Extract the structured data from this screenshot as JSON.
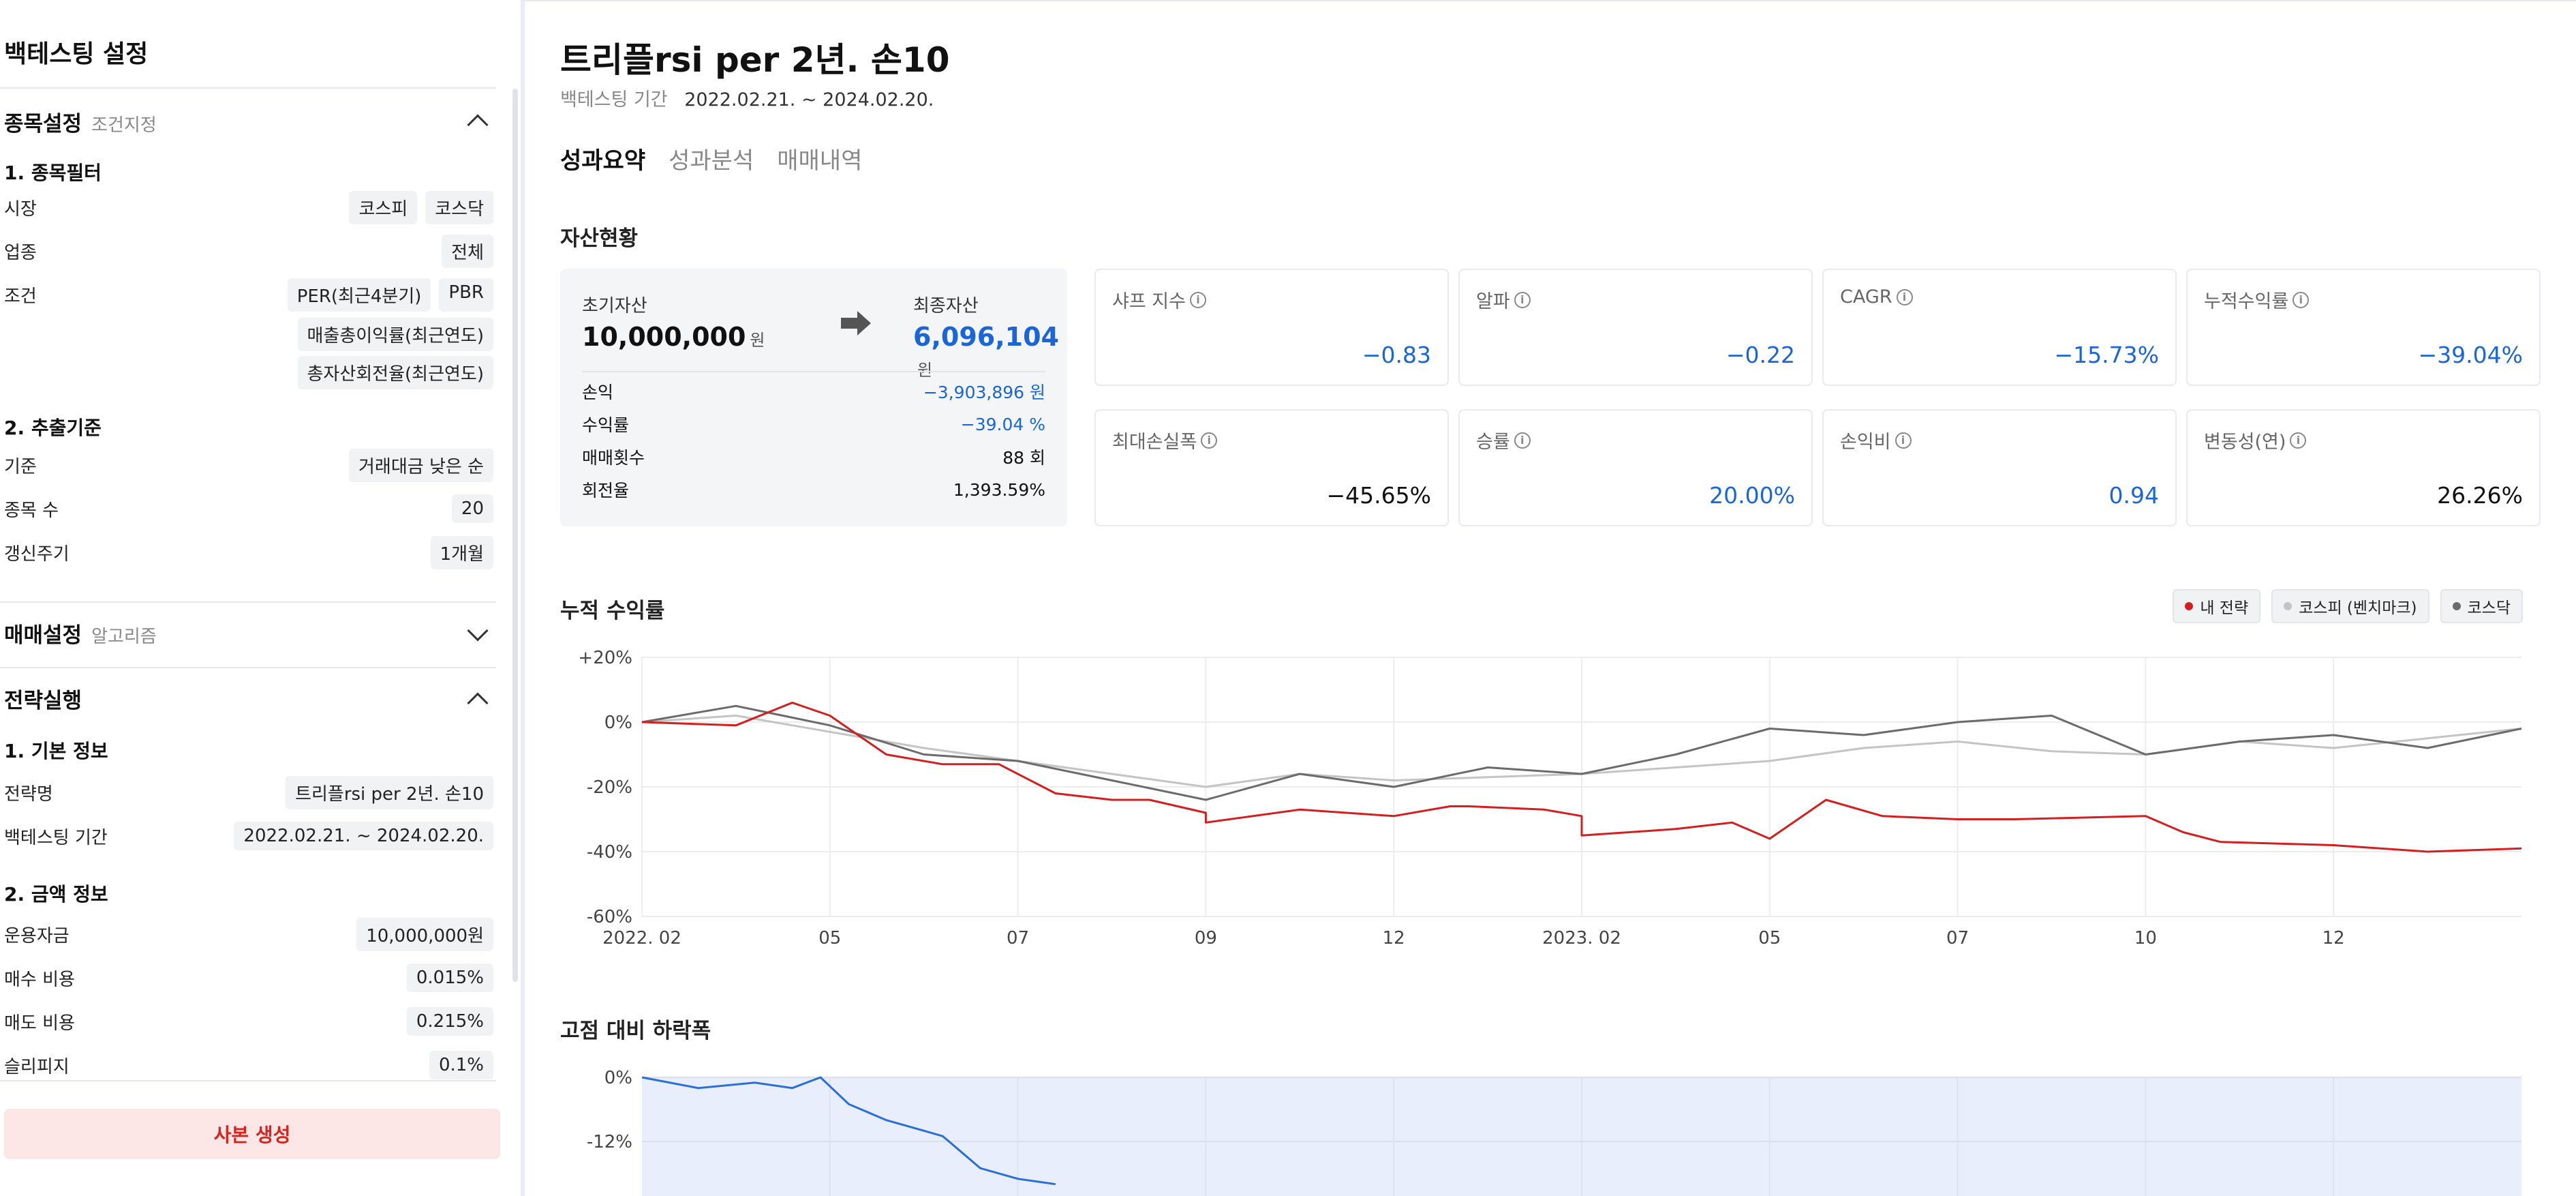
{
  "sidebar": {
    "title": "백테스팅 설정",
    "stock_section": {
      "title": "종목설정",
      "subtitle": "조건지정"
    },
    "filter": {
      "title": "1. 종목필터",
      "market_label": "시장",
      "markets": [
        "코스피",
        "코스닥"
      ],
      "industry_label": "업종",
      "industry": "전체",
      "condition_label": "조건",
      "conditions": [
        "PER(최근4분기)",
        "PBR",
        "매출총이익률(최근연도)",
        "총자산회전율(최근연도)"
      ]
    },
    "extract": {
      "title": "2. 추출기준",
      "basis_label": "기준",
      "basis": "거래대금 낮은 순",
      "count_label": "종목 수",
      "count": "20",
      "cycle_label": "갱신주기",
      "cycle": "1개월"
    },
    "trade_section": {
      "title": "매매설정",
      "subtitle": "알고리즘"
    },
    "exec_section": {
      "title": "전략실행"
    },
    "basic": {
      "title": "1. 기본 정보",
      "name_label": "전략명",
      "name": "트리플rsi per 2년. 손10",
      "period_label": "백테스팅 기간",
      "period": "2022.02.21. ~ 2024.02.20."
    },
    "amount": {
      "title": "2. 금액 정보",
      "fund_label": "운용자금",
      "fund": "10,000,000원",
      "buy_fee_label": "매수 비용",
      "buy_fee": "0.015%",
      "sell_fee_label": "매도 비용",
      "sell_fee": "0.215%",
      "slip_label": "슬리피지",
      "slip": "0.1%"
    },
    "copy_button": "사본 생성"
  },
  "main": {
    "title": "트리플rsi per 2년. 손10",
    "period_label": "백테스팅 기간",
    "period": "2022.02.21. ~ 2024.02.20.",
    "tabs": [
      "성과요약",
      "성과분석",
      "매매내역"
    ],
    "assets_title": "자산현황",
    "assets": {
      "initial_label": "초기자산",
      "initial": "10,000,000",
      "unit": "원",
      "final_label": "최종자산",
      "final": "6,096,104",
      "pl_label": "손익",
      "pl": "−3,903,896 원",
      "return_label": "수익률",
      "return": "−39.04 %",
      "trades_label": "매매횟수",
      "trades": "88 회",
      "turnover_label": "회전율",
      "turnover": "1,393.59%"
    },
    "metrics": [
      {
        "label": "샤프 지수",
        "value": "−0.83",
        "tone": "blue"
      },
      {
        "label": "알파",
        "value": "−0.22",
        "tone": "blue"
      },
      {
        "label": "CAGR",
        "value": "−15.73%",
        "tone": "blue"
      },
      {
        "label": "누적수익률",
        "value": "−39.04%",
        "tone": "blue"
      },
      {
        "label": "최대손실폭",
        "value": "−45.65%",
        "tone": "dark"
      },
      {
        "label": "승률",
        "value": "20.00%",
        "tone": "blue"
      },
      {
        "label": "손익비",
        "value": "0.94",
        "tone": "blue"
      },
      {
        "label": "변동성(연)",
        "value": "26.26%",
        "tone": "dark"
      }
    ],
    "cum_title": "누적 수익률",
    "dd_title": "고점 대비 하락폭",
    "colors": {
      "strategy": "#d21f1f",
      "kospi": "#c4c4c4",
      "kosdaq": "#6b6b6b",
      "dd_line": "#2a6fd6",
      "dd_fill": "#e8eefc"
    }
  },
  "chart_data": [
    {
      "type": "line",
      "title": "누적 수익률",
      "x_ticks": [
        "2022. 02",
        "05",
        "07",
        "09",
        "12",
        "2023. 02",
        "05",
        "07",
        "10",
        "12"
      ],
      "y_ticks": [
        "+20%",
        "0%",
        "-20%",
        "-40%",
        "-60%"
      ],
      "ylim": [
        -60,
        20
      ],
      "legend": "top-right",
      "series": [
        {
          "name": "내 전략",
          "x_frac": [
            0,
            0.05,
            0.08,
            0.1,
            0.13,
            0.16,
            0.19,
            0.22,
            0.25,
            0.27,
            0.3,
            0.3,
            0.35,
            0.4,
            0.43,
            0.44,
            0.48,
            0.5,
            0.5,
            0.55,
            0.58,
            0.6,
            0.62,
            0.63,
            0.66,
            0.7,
            0.73,
            0.8,
            0.82,
            0.84,
            0.9,
            0.95,
            1.0
          ],
          "values": [
            0,
            -1,
            6,
            2,
            -10,
            -13,
            -13,
            -22,
            -24,
            -24,
            -28,
            -31,
            -27,
            -29,
            -26,
            -26,
            -27,
            -29,
            -35,
            -33,
            -31,
            -36,
            -28,
            -24,
            -29,
            -30,
            -30,
            -29,
            -34,
            -37,
            -38,
            -40,
            -39
          ]
        },
        {
          "name": "코스피 (벤치마크)",
          "x_frac": [
            0,
            0.05,
            0.1,
            0.15,
            0.2,
            0.25,
            0.3,
            0.35,
            0.4,
            0.45,
            0.5,
            0.55,
            0.6,
            0.65,
            0.7,
            0.75,
            0.8,
            0.85,
            0.9,
            0.95,
            1.0
          ],
          "values": [
            0,
            2,
            -3,
            -8,
            -12,
            -16,
            -20,
            -16,
            -18,
            -17,
            -16,
            -14,
            -12,
            -8,
            -6,
            -9,
            -10,
            -6,
            -8,
            -5,
            -2
          ]
        },
        {
          "name": "코스닥",
          "x_frac": [
            0,
            0.05,
            0.1,
            0.15,
            0.2,
            0.25,
            0.3,
            0.35,
            0.4,
            0.45,
            0.5,
            0.55,
            0.6,
            0.65,
            0.7,
            0.75,
            0.8,
            0.85,
            0.9,
            0.95,
            1.0
          ],
          "values": [
            0,
            5,
            -1,
            -10,
            -12,
            -18,
            -24,
            -16,
            -20,
            -14,
            -16,
            -10,
            -2,
            -4,
            0,
            2,
            -10,
            -6,
            -4,
            -8,
            -2
          ]
        }
      ]
    },
    {
      "type": "area",
      "title": "고점 대비 하락폭",
      "y_ticks": [
        "0%",
        "-12%"
      ],
      "ylim": [
        -36,
        0
      ],
      "x_frac": [
        0,
        0.03,
        0.06,
        0.08,
        0.095,
        0.11,
        0.13,
        0.15,
        0.16,
        0.17,
        0.18,
        0.2,
        0.22
      ],
      "values": [
        0,
        -2,
        -1,
        -2,
        0,
        -5,
        -8,
        -10,
        -11,
        -14,
        -17,
        -19,
        -20
      ]
    }
  ]
}
